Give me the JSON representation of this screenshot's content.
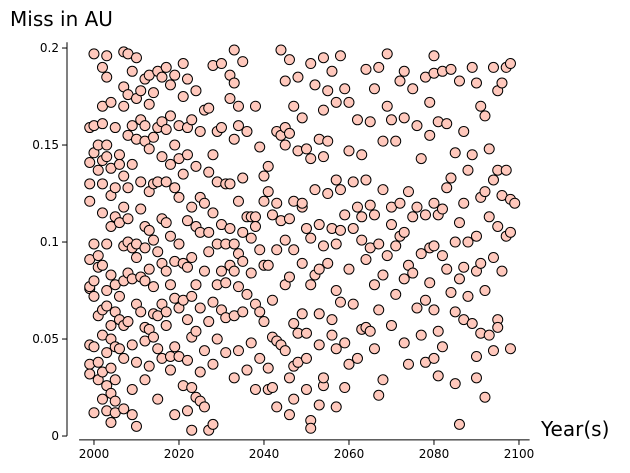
{
  "chart_data": {
    "type": "scatter",
    "title": "Miss in AU",
    "x_label": "Year(s)",
    "xlim": [
      1996.5,
      2102.5
    ],
    "ylim": [
      -0.002,
      0.203
    ],
    "xticks": [
      2000,
      2020,
      2040,
      2060,
      2080,
      2100
    ],
    "yticks": [
      0,
      0.05,
      0.1,
      0.15,
      0.2
    ],
    "grid": false,
    "series": [
      {
        "color": "#ffc8bc",
        "x": [
          1999,
          1999,
          1999,
          1999,
          1999,
          1999,
          1999,
          1999,
          1999,
          1999,
          2000,
          2000,
          2000,
          2000,
          2000,
          2000,
          2000,
          2000,
          2001,
          2001,
          2001,
          2001,
          2001,
          2001,
          2001,
          2002,
          2002,
          2002,
          2002,
          2002,
          2002,
          2002,
          2002,
          2002,
          2002,
          2002,
          2003,
          2003,
          2003,
          2003,
          2003,
          2003,
          2003,
          2003,
          2003,
          2003,
          2004,
          2004,
          2004,
          2004,
          2004,
          2004,
          2004,
          2004,
          2004,
          2004,
          2005,
          2005,
          2005,
          2005,
          2005,
          2005,
          2005,
          2005,
          2005,
          2006,
          2006,
          2006,
          2006,
          2006,
          2006,
          2007,
          2007,
          2007,
          2007,
          2007,
          2007,
          2007,
          2007,
          2007,
          2007,
          2008,
          2008,
          2008,
          2008,
          2008,
          2008,
          2008,
          2008,
          2009,
          2009,
          2009,
          2009,
          2009,
          2009,
          2009,
          2009,
          2010,
          2010,
          2010,
          2010,
          2010,
          2010,
          2010,
          2010,
          2011,
          2011,
          2011,
          2011,
          2011,
          2011,
          2012,
          2012,
          2012,
          2012,
          2012,
          2012,
          2012,
          2012,
          2012,
          2013,
          2013,
          2013,
          2013,
          2013,
          2013,
          2013,
          2013,
          2014,
          2014,
          2014,
          2014,
          2014,
          2014,
          2014,
          2015,
          2015,
          2015,
          2015,
          2015,
          2015,
          2015,
          2016,
          2016,
          2016,
          2016,
          2016,
          2016,
          2016,
          2017,
          2017,
          2017,
          2017,
          2017,
          2017,
          2017,
          2018,
          2018,
          2018,
          2018,
          2018,
          2018,
          2018,
          2019,
          2019,
          2019,
          2019,
          2019,
          2019,
          2019,
          2020,
          2020,
          2020,
          2020,
          2020,
          2020,
          2021,
          2021,
          2021,
          2021,
          2021,
          2021,
          2022,
          2022,
          2022,
          2022,
          2022,
          2022,
          2022,
          2022,
          2023,
          2023,
          2023,
          2023,
          2023,
          2023,
          2023,
          2024,
          2024,
          2024,
          2024,
          2024,
          2024,
          2025,
          2025,
          2025,
          2025,
          2025,
          2025,
          2026,
          2026,
          2026,
          2026,
          2026,
          2027,
          2027,
          2027,
          2027,
          2027,
          2027,
          2028,
          2028,
          2028,
          2028,
          2028,
          2028,
          2029,
          2029,
          2029,
          2029,
          2029,
          2030,
          2030,
          2030,
          2030,
          2030,
          2031,
          2031,
          2031,
          2031,
          2031,
          2032,
          2032,
          2032,
          2032,
          2032,
          2033,
          2033,
          2033,
          2033,
          2033,
          2033,
          2033,
          2034,
          2034,
          2034,
          2034,
          2034,
          2034,
          2035,
          2035,
          2035,
          2035,
          2035,
          2036,
          2036,
          2036,
          2036,
          2037,
          2037,
          2037,
          2037,
          2038,
          2038,
          2038,
          2038,
          2038,
          2039,
          2039,
          2039,
          2039,
          2040,
          2040,
          2040,
          2040,
          2041,
          2041,
          2041,
          2041,
          2041,
          2042,
          2042,
          2042,
          2042,
          2043,
          2043,
          2043,
          2043,
          2043,
          2044,
          2044,
          2044,
          2044,
          2045,
          2045,
          2045,
          2045,
          2045,
          2045,
          2046,
          2046,
          2046,
          2046,
          2046,
          2046,
          2047,
          2047,
          2047,
          2047,
          2047,
          2047,
          2048,
          2048,
          2048,
          2048,
          2049,
          2049,
          2049,
          2049,
          2049,
          2050,
          2050,
          2050,
          2050,
          2050,
          2051,
          2051,
          2051,
          2051,
          2051,
          2051,
          2052,
          2052,
          2052,
          2053,
          2053,
          2053,
          2053,
          2053,
          2053,
          2054,
          2054,
          2054,
          2054,
          2054,
          2054,
          2055,
          2055,
          2055,
          2055,
          2056,
          2056,
          2056,
          2056,
          2057,
          2057,
          2057,
          2057,
          2057,
          2057,
          2058,
          2058,
          2058,
          2058,
          2059,
          2059,
          2059,
          2059,
          2060,
          2060,
          2060,
          2060,
          2061,
          2061,
          2061,
          2062,
          2062,
          2062,
          2063,
          2063,
          2063,
          2063,
          2064,
          2064,
          2064,
          2064,
          2065,
          2065,
          2065,
          2065,
          2066,
          2066,
          2066,
          2066,
          2067,
          2067,
          2067,
          2067,
          2068,
          2068,
          2068,
          2068,
          2069,
          2069,
          2069,
          2070,
          2070,
          2070,
          2070,
          2071,
          2071,
          2071,
          2072,
          2072,
          2072,
          2073,
          2073,
          2073,
          2073,
          2073,
          2074,
          2074,
          2074,
          2075,
          2075,
          2075,
          2076,
          2076,
          2076,
          2077,
          2077,
          2077,
          2078,
          2078,
          2078,
          2078,
          2079,
          2079,
          2079,
          2079,
          2080,
          2080,
          2080,
          2080,
          2080,
          2080,
          2081,
          2081,
          2081,
          2081,
          2082,
          2082,
          2082,
          2082,
          2083,
          2083,
          2083,
          2084,
          2084,
          2084,
          2085,
          2085,
          2085,
          2085,
          2086,
          2086,
          2086,
          2086,
          2087,
          2087,
          2087,
          2087,
          2088,
          2088,
          2088,
          2089,
          2089,
          2089,
          2090,
          2090,
          2090,
          2090,
          2090,
          2091,
          2091,
          2091,
          2091,
          2092,
          2092,
          2092,
          2092,
          2093,
          2093,
          2093,
          2094,
          2094,
          2094,
          2094,
          2095,
          2095,
          2095,
          2095,
          2095,
          2096,
          2096,
          2096,
          2097,
          2097,
          2097,
          2098,
          2098,
          2098,
          2098,
          2099
        ],
        "values": [
          0.091,
          0.076,
          0.047,
          0.037,
          0.032,
          0.159,
          0.141,
          0.13,
          0.121,
          0.077,
          0.197,
          0.16,
          0.146,
          0.099,
          0.08,
          0.072,
          0.046,
          0.012,
          0.15,
          0.137,
          0.093,
          0.087,
          0.062,
          0.038,
          0.029,
          0.19,
          0.17,
          0.161,
          0.142,
          0.13,
          0.115,
          0.088,
          0.065,
          0.052,
          0.033,
          0.019,
          0.196,
          0.185,
          0.15,
          0.144,
          0.099,
          0.075,
          0.067,
          0.043,
          0.026,
          0.013,
          0.172,
          0.138,
          0.124,
          0.108,
          0.083,
          0.057,
          0.05,
          0.035,
          0.022,
          0.007,
          0.159,
          0.128,
          0.113,
          0.078,
          0.064,
          0.046,
          0.029,
          0.018,
          0.012,
          0.145,
          0.14,
          0.11,
          0.072,
          0.06,
          0.045,
          0.198,
          0.18,
          0.17,
          0.134,
          0.118,
          0.098,
          0.08,
          0.057,
          0.04,
          0.014,
          0.197,
          0.176,
          0.155,
          0.128,
          0.112,
          0.1,
          0.084,
          0.059,
          0.188,
          0.16,
          0.14,
          0.097,
          0.081,
          0.047,
          0.024,
          0.011,
          0.195,
          0.174,
          0.153,
          0.099,
          0.092,
          0.068,
          0.038,
          0.005,
          0.178,
          0.163,
          0.131,
          0.117,
          0.082,
          0.064,
          0.184,
          0.16,
          0.152,
          0.108,
          0.097,
          0.08,
          0.056,
          0.049,
          0.029,
          0.186,
          0.171,
          0.148,
          0.126,
          0.106,
          0.086,
          0.055,
          0.036,
          0.177,
          0.154,
          0.13,
          0.101,
          0.077,
          0.063,
          0.051,
          0.188,
          0.159,
          0.131,
          0.095,
          0.062,
          0.045,
          0.019,
          0.185,
          0.162,
          0.144,
          0.112,
          0.089,
          0.068,
          0.04,
          0.19,
          0.158,
          0.131,
          0.11,
          0.085,
          0.064,
          0.057,
          0.181,
          0.165,
          0.14,
          0.103,
          0.078,
          0.041,
          0.034,
          0.186,
          0.15,
          0.128,
          0.09,
          0.071,
          0.046,
          0.011,
          0.16,
          0.143,
          0.123,
          0.099,
          0.066,
          0.041,
          0.192,
          0.175,
          0.135,
          0.089,
          0.07,
          0.026,
          0.184,
          0.159,
          0.145,
          0.111,
          0.087,
          0.06,
          0.039,
          0.013,
          0.163,
          0.118,
          0.092,
          0.072,
          0.051,
          0.025,
          0.003,
          0.178,
          0.139,
          0.108,
          0.078,
          0.054,
          0.02,
          0.157,
          0.123,
          0.105,
          0.066,
          0.033,
          0.018,
          0.168,
          0.12,
          0.085,
          0.044,
          0.015,
          0.169,
          0.136,
          0.105,
          0.095,
          0.059,
          0.003,
          0.191,
          0.145,
          0.115,
          0.069,
          0.037,
          0.006,
          0.157,
          0.131,
          0.099,
          0.078,
          0.05,
          0.192,
          0.159,
          0.109,
          0.085,
          0.065,
          0.13,
          0.099,
          0.079,
          0.061,
          0.043,
          0.186,
          0.174,
          0.13,
          0.107,
          0.088,
          0.199,
          0.182,
          0.153,
          0.099,
          0.085,
          0.062,
          0.03,
          0.17,
          0.16,
          0.121,
          0.094,
          0.077,
          0.044,
          0.193,
          0.133,
          0.105,
          0.09,
          0.064,
          0.157,
          0.113,
          0.073,
          0.034,
          0.113,
          0.102,
          0.084,
          0.048,
          0.17,
          0.113,
          0.108,
          0.068,
          0.024,
          0.149,
          0.096,
          0.064,
          0.04,
          0.134,
          0.121,
          0.088,
          0.059,
          0.139,
          0.126,
          0.088,
          0.035,
          0.024,
          0.114,
          0.07,
          0.051,
          0.025,
          0.157,
          0.12,
          0.096,
          0.049,
          0.015,
          0.199,
          0.155,
          0.111,
          0.047,
          0.183,
          0.159,
          0.15,
          0.101,
          0.078,
          0.044,
          0.194,
          0.156,
          0.112,
          0.082,
          0.03,
          0.011,
          0.17,
          0.121,
          0.096,
          0.058,
          0.036,
          0.019,
          0.185,
          0.147,
          0.053,
          0.038,
          0.164,
          0.118,
          0.12,
          0.089,
          0.063,
          0.148,
          0.107,
          0.053,
          0.04,
          0.024,
          0.192,
          0.143,
          0.102,
          0.078,
          0.008,
          0.004,
          0.181,
          0.127,
          0.083,
          0.153,
          0.109,
          0.086,
          0.063,
          0.047,
          0.016,
          0.195,
          0.168,
          0.144,
          0.098,
          0.026,
          0.03,
          0.178,
          0.152,
          0.125,
          0.089,
          0.188,
          0.107,
          0.06,
          0.052,
          0.172,
          0.132,
          0.099,
          0.075,
          0.045,
          0.015,
          0.196,
          0.127,
          0.106,
          0.069,
          0.179,
          0.114,
          0.048,
          0.025,
          0.172,
          0.147,
          0.086,
          0.037,
          0.131,
          0.107,
          0.068,
          0.163,
          0.118,
          0.04,
          0.145,
          0.113,
          0.101,
          0.055,
          0.189,
          0.132,
          0.091,
          0.056,
          0.162,
          0.119,
          0.097,
          0.054,
          0.179,
          0.114,
          0.078,
          0.045,
          0.19,
          0.099,
          0.065,
          0.021,
          0.152,
          0.127,
          0.083,
          0.029,
          0.197,
          0.17,
          0.093,
          0.163,
          0.118,
          0.109,
          0.057,
          0.152,
          0.098,
          0.073,
          0.183,
          0.12,
          0.103,
          0.188,
          0.164,
          0.105,
          0.081,
          0.048,
          0.126,
          0.088,
          0.037,
          0.179,
          0.113,
          0.084,
          0.16,
          0.118,
          0.066,
          0.143,
          0.094,
          0.052,
          0.185,
          0.114,
          0.07,
          0.038,
          0.172,
          0.155,
          0.097,
          0.079,
          0.196,
          0.187,
          0.12,
          0.098,
          0.065,
          0.04,
          0.162,
          0.114,
          0.054,
          0.031,
          0.188,
          0.117,
          0.093,
          0.046,
          0.161,
          0.128,
          0.086,
          0.189,
          0.133,
          0.074,
          0.146,
          0.1,
          0.064,
          0.027,
          0.183,
          0.11,
          0.081,
          0.006,
          0.157,
          0.12,
          0.087,
          0.06,
          0.137,
          0.1,
          0.072,
          0.19,
          0.145,
          0.058,
          0.182,
          0.103,
          0.085,
          0.041,
          0.03,
          0.17,
          0.123,
          0.089,
          0.053,
          0.165,
          0.126,
          0.075,
          0.02,
          0.148,
          0.113,
          0.052,
          0.19,
          0.132,
          0.092,
          0.044,
          0.178,
          0.137,
          0.108,
          0.06,
          0.056,
          0.182,
          0.124,
          0.085,
          0.19,
          0.137,
          0.103,
          0.192,
          0.122,
          0.105,
          0.045,
          0.12
        ]
      }
    ]
  }
}
